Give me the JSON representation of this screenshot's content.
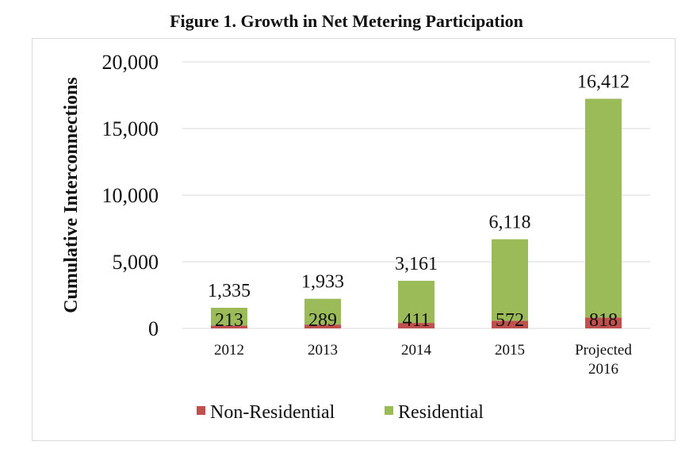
{
  "chart_data": {
    "type": "bar",
    "stacked": true,
    "title": "Figure 1. Growth in Net Metering Participation",
    "ylabel": "Cumulative Interconnections",
    "xlabel": "",
    "ylim": [
      0,
      20000
    ],
    "yticks": [
      0,
      5000,
      10000,
      15000,
      20000
    ],
    "ytick_labels": [
      "0",
      "5,000",
      "10,000",
      "15,000",
      "20,000"
    ],
    "grid": true,
    "legend_position": "bottom",
    "categories": [
      "2012",
      "2013",
      "2014",
      "2015",
      "Projected 2016"
    ],
    "category_lines": [
      [
        "2012"
      ],
      [
        "2013"
      ],
      [
        "2014"
      ],
      [
        "2015"
      ],
      [
        "Projected",
        "2016"
      ]
    ],
    "series": [
      {
        "name": "Non-Residential",
        "color": "#c0504d",
        "values": [
          213,
          289,
          411,
          572,
          818
        ],
        "labels": [
          "213",
          "289",
          "411",
          "572",
          "818"
        ]
      },
      {
        "name": "Residential",
        "color": "#9bbb59",
        "values": [
          1335,
          1933,
          3161,
          6118,
          16412
        ],
        "labels": [
          "1,335",
          "1,933",
          "3,161",
          "6,118",
          "16,412"
        ]
      }
    ]
  }
}
